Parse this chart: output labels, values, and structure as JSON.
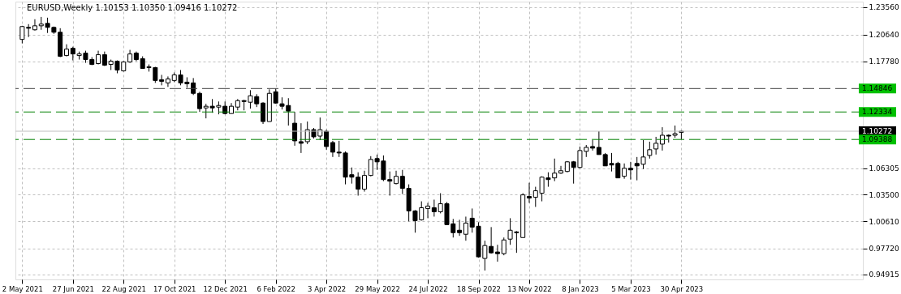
{
  "chart_data": {
    "type": "candlestick",
    "title": "EURUSD,Weekly  1.10153 1.10350 1.09416 1.10272",
    "x": [
      "2021-05-02",
      "2021-05-09",
      "2021-05-16",
      "2021-05-23",
      "2021-05-30",
      "2021-06-06",
      "2021-06-13",
      "2021-06-20",
      "2021-06-27",
      "2021-07-04",
      "2021-07-11",
      "2021-07-18",
      "2021-07-25",
      "2021-08-01",
      "2021-08-08",
      "2021-08-15",
      "2021-08-22",
      "2021-08-29",
      "2021-09-05",
      "2021-09-12",
      "2021-09-19",
      "2021-09-26",
      "2021-10-03",
      "2021-10-10",
      "2021-10-17",
      "2021-10-24",
      "2021-10-31",
      "2021-11-07",
      "2021-11-14",
      "2021-11-21",
      "2021-11-28",
      "2021-12-05",
      "2021-12-12",
      "2021-12-19",
      "2021-12-26",
      "2022-01-02",
      "2022-01-09",
      "2022-01-16",
      "2022-01-23",
      "2022-01-30",
      "2022-02-06",
      "2022-02-13",
      "2022-02-20",
      "2022-02-27",
      "2022-03-06",
      "2022-03-13",
      "2022-03-20",
      "2022-03-27",
      "2022-04-03",
      "2022-04-10",
      "2022-04-17",
      "2022-04-24",
      "2022-05-01",
      "2022-05-08",
      "2022-05-15",
      "2022-05-22",
      "2022-05-29",
      "2022-06-05",
      "2022-06-12",
      "2022-06-19",
      "2022-06-26",
      "2022-07-03",
      "2022-07-10",
      "2022-07-17",
      "2022-07-24",
      "2022-07-31",
      "2022-08-07",
      "2022-08-14",
      "2022-08-21",
      "2022-08-28",
      "2022-09-04",
      "2022-09-11",
      "2022-09-18",
      "2022-09-25",
      "2022-10-02",
      "2022-10-09",
      "2022-10-16",
      "2022-10-23",
      "2022-10-30",
      "2022-11-06",
      "2022-11-13",
      "2022-11-20",
      "2022-11-27",
      "2022-12-04",
      "2022-12-11",
      "2022-12-18",
      "2022-12-25",
      "2023-01-01",
      "2023-01-08",
      "2023-01-15",
      "2023-01-22",
      "2023-01-29",
      "2023-02-05",
      "2023-02-12",
      "2023-02-19",
      "2023-02-26",
      "2023-03-05",
      "2023-03-12",
      "2023-03-19",
      "2023-03-26",
      "2023-04-02",
      "2023-04-09",
      "2023-04-16",
      "2023-04-23",
      "2023-04-30"
    ],
    "ohlc": [
      [
        1.2011,
        1.2157,
        1.1968,
        1.2149
      ],
      [
        1.214,
        1.2175,
        1.2036,
        1.2131
      ],
      [
        1.2114,
        1.2227,
        1.2106,
        1.2157
      ],
      [
        1.2157,
        1.2252,
        1.2114,
        1.2175
      ],
      [
        1.2183,
        1.2244,
        1.208,
        1.214
      ],
      [
        1.214,
        1.2149,
        1.2071,
        1.2088
      ],
      [
        1.2088,
        1.2131,
        1.1821,
        1.183
      ],
      [
        1.1838,
        1.1959,
        1.183,
        1.1907
      ],
      [
        1.1916,
        1.1933,
        1.1786,
        1.1855
      ],
      [
        1.1838,
        1.1881,
        1.1795,
        1.1855
      ],
      [
        1.1864,
        1.189,
        1.176,
        1.1795
      ],
      [
        1.1795,
        1.1821,
        1.1735,
        1.1743
      ],
      [
        1.1752,
        1.189,
        1.1743,
        1.1847
      ],
      [
        1.1847,
        1.1881,
        1.1726,
        1.1735
      ],
      [
        1.1743,
        1.1795,
        1.1683,
        1.1778
      ],
      [
        1.1778,
        1.1786,
        1.1648,
        1.1683
      ],
      [
        1.1674,
        1.1778,
        1.1666,
        1.1769
      ],
      [
        1.1769,
        1.1899,
        1.176,
        1.1855
      ],
      [
        1.1864,
        1.1881,
        1.1778,
        1.1795
      ],
      [
        1.1804,
        1.183,
        1.17,
        1.17
      ],
      [
        1.1717,
        1.1743,
        1.1666,
        1.1709
      ],
      [
        1.1709,
        1.1717,
        1.1545,
        1.1571
      ],
      [
        1.1579,
        1.1631,
        1.1519,
        1.1562
      ],
      [
        1.1545,
        1.1614,
        1.1502,
        1.1588
      ],
      [
        1.1571,
        1.1657,
        1.1553,
        1.1631
      ],
      [
        1.1631,
        1.1683,
        1.1519,
        1.1545
      ],
      [
        1.1553,
        1.1605,
        1.1493,
        1.1536
      ],
      [
        1.1545,
        1.1597,
        1.1415,
        1.1433
      ],
      [
        1.1433,
        1.145,
        1.1234,
        1.1269
      ],
      [
        1.1277,
        1.1321,
        1.1165,
        1.1295
      ],
      [
        1.1295,
        1.1372,
        1.1225,
        1.1277
      ],
      [
        1.1286,
        1.1346,
        1.1208,
        1.1303
      ],
      [
        1.1295,
        1.1346,
        1.1208,
        1.1217
      ],
      [
        1.1217,
        1.1329,
        1.1217,
        1.1295
      ],
      [
        1.1286,
        1.1372,
        1.1251,
        1.1355
      ],
      [
        1.1355,
        1.1364,
        1.1251,
        1.1346
      ],
      [
        1.1338,
        1.1467,
        1.1269,
        1.1407
      ],
      [
        1.1398,
        1.1424,
        1.1286,
        1.1321
      ],
      [
        1.1329,
        1.1338,
        1.1105,
        1.1131
      ],
      [
        1.1131,
        1.1476,
        1.1131,
        1.1433
      ],
      [
        1.145,
        1.1484,
        1.1321,
        1.1329
      ],
      [
        1.1321,
        1.139,
        1.126,
        1.1295
      ],
      [
        1.1303,
        1.1381,
        1.1088,
        1.1243
      ],
      [
        1.1113,
        1.1234,
        1.0872,
        1.0924
      ],
      [
        1.0915,
        1.1113,
        1.0794,
        1.0898
      ],
      [
        1.0915,
        1.1131,
        1.0889,
        1.1044
      ],
      [
        1.1044,
        1.1062,
        1.0949,
        1.0967
      ],
      [
        1.0975,
        1.1174,
        1.0932,
        1.1044
      ],
      [
        1.1027,
        1.1044,
        1.0829,
        1.0863
      ],
      [
        1.0906,
        1.0924,
        1.0751,
        1.0803
      ],
      [
        1.0803,
        1.0924,
        1.0751,
        1.0794
      ],
      [
        1.0794,
        1.0811,
        1.0458,
        1.0535
      ],
      [
        1.0561,
        1.0639,
        1.0466,
        1.0535
      ],
      [
        1.0535,
        1.0587,
        1.0337,
        1.0406
      ],
      [
        1.0406,
        1.0604,
        1.038,
        1.0553
      ],
      [
        1.0553,
        1.076,
        1.0544,
        1.0725
      ],
      [
        1.0734,
        1.0777,
        1.0613,
        1.0699
      ],
      [
        1.0708,
        1.0768,
        1.0492,
        1.0509
      ],
      [
        1.0509,
        1.0596,
        1.0337,
        1.0492
      ],
      [
        1.0466,
        1.0604,
        1.0458,
        1.0544
      ],
      [
        1.0544,
        1.0613,
        1.0354,
        1.0415
      ],
      [
        1.0415,
        1.0458,
        1.0061,
        1.0173
      ],
      [
        1.0173,
        1.0182,
        0.994,
        1.0069
      ],
      [
        1.0078,
        1.0276,
        1.0069,
        1.0207
      ],
      [
        1.0199,
        1.0259,
        1.0095,
        1.0225
      ],
      [
        1.0207,
        1.0294,
        1.0112,
        1.0164
      ],
      [
        1.0164,
        1.0363,
        1.0147,
        1.025
      ],
      [
        1.025,
        1.0268,
        1.0026,
        1.0026
      ],
      [
        1.0035,
        1.0087,
        0.9888,
        0.994
      ],
      [
        0.9966,
        1.0078,
        0.9906,
        0.994
      ],
      [
        0.9923,
        1.0112,
        0.9854,
        1.0043
      ],
      [
        1.0095,
        1.0199,
        0.994,
        1.0
      ],
      [
        1.0009,
        1.0052,
        0.9672,
        0.9681
      ],
      [
        0.9664,
        0.9854,
        0.9534,
        0.9802
      ],
      [
        0.9793,
        1.0,
        0.9715,
        0.9724
      ],
      [
        0.9733,
        0.981,
        0.9629,
        0.9715
      ],
      [
        0.9715,
        0.9888,
        0.9698,
        0.9862
      ],
      [
        0.9871,
        1.0095,
        0.981,
        0.9966
      ],
      [
        0.9948,
        0.9957,
        0.9724,
        0.994
      ],
      [
        0.9888,
        1.0363,
        0.9888,
        1.0345
      ],
      [
        1.0328,
        1.0475,
        1.0259,
        1.0311
      ],
      [
        1.0319,
        1.0432,
        1.0216,
        1.0389
      ],
      [
        1.0363,
        1.0544,
        1.0276,
        1.0535
      ],
      [
        1.0527,
        1.0587,
        1.0432,
        1.0509
      ],
      [
        1.0527,
        1.0734,
        1.0492,
        1.0578
      ],
      [
        1.0578,
        1.0656,
        1.057,
        1.0604
      ],
      [
        1.0596,
        1.0708,
        1.0587,
        1.0699
      ],
      [
        1.0699,
        1.0708,
        1.0466,
        1.0639
      ],
      [
        1.0639,
        1.0863,
        1.063,
        1.082
      ],
      [
        1.0811,
        1.088,
        1.0751,
        1.0854
      ],
      [
        1.0863,
        1.0932,
        1.082,
        1.0846
      ],
      [
        1.0854,
        1.1027,
        1.0777,
        1.0777
      ],
      [
        1.0777,
        1.0794,
        1.0656,
        1.0656
      ],
      [
        1.0682,
        1.0794,
        1.0596,
        1.0665
      ],
      [
        1.0682,
        1.0699,
        1.0527,
        1.0527
      ],
      [
        1.0544,
        1.0682,
        1.0518,
        1.063
      ],
      [
        1.063,
        1.0699,
        1.0509,
        1.0613
      ],
      [
        1.0682,
        1.0751,
        1.0501,
        1.0656
      ],
      [
        1.0673,
        1.0932,
        1.0622,
        1.0751
      ],
      [
        1.0768,
        1.0915,
        1.0734,
        1.0829
      ],
      [
        1.0837,
        1.0967,
        1.0777,
        1.0898
      ],
      [
        1.0889,
        1.107,
        1.082,
        1.0984
      ],
      [
        1.0984,
        1.0993,
        1.0906,
        1.0975
      ],
      [
        1.0984,
        1.1088,
        1.0958,
        1.1001
      ],
      [
        1.10153,
        1.1035,
        1.09416,
        1.10272
      ]
    ],
    "xlim": [
      "2021-04-29",
      "2023-11-12"
    ],
    "xticks": [
      {
        "value": "2021-05-02",
        "label": "2 May 2021"
      },
      {
        "value": "2021-06-27",
        "label": "27 Jun 2021"
      },
      {
        "value": "2021-08-22",
        "label": "22 Aug 2021"
      },
      {
        "value": "2021-10-17",
        "label": "17 Oct 2021"
      },
      {
        "value": "2021-12-12",
        "label": "12 Dec 2021"
      },
      {
        "value": "2022-02-06",
        "label": "6 Feb 2022"
      },
      {
        "value": "2022-04-03",
        "label": "3 Apr 2022"
      },
      {
        "value": "2022-05-29",
        "label": "29 May 2022"
      },
      {
        "value": "2022-07-24",
        "label": "24 Jul 2022"
      },
      {
        "value": "2022-09-18",
        "label": "18 Sep 2022"
      },
      {
        "value": "2022-11-13",
        "label": "13 Nov 2022"
      },
      {
        "value": "2023-01-08",
        "label": "8 Jan 2023"
      },
      {
        "value": "2023-03-05",
        "label": "5 Mar 2023"
      },
      {
        "value": "2023-04-30",
        "label": "30 Apr 2023"
      }
    ],
    "ylim": [
      0.9439,
      1.2416
    ],
    "yticks": [
      {
        "value": 1.2356,
        "label": "1.23560"
      },
      {
        "value": 1.2064,
        "label": "1.20640"
      },
      {
        "value": 1.1778,
        "label": "1.17780"
      },
      {
        "value": 1.06305,
        "label": "1.06305"
      },
      {
        "value": 1.035,
        "label": "1.03500"
      },
      {
        "value": 1.0061,
        "label": "1.00610"
      },
      {
        "value": 0.9772,
        "label": "0.97720"
      },
      {
        "value": 0.94915,
        "label": "0.94915"
      }
    ],
    "ref_lines": [
      {
        "axis": "y",
        "value": 1.14846,
        "label": "1.14846",
        "color": "#404040",
        "line_style": "dashed"
      },
      {
        "axis": "y",
        "value": 1.12334,
        "label": "1.12334",
        "color": "#008000",
        "line_style": "dashed"
      },
      {
        "axis": "y",
        "value": 1.10272,
        "label": "1.10272",
        "color": "#c0c0c0",
        "line_style": "solid"
      },
      {
        "axis": "y",
        "value": 1.09388,
        "label": "1.09388",
        "color": "#008000",
        "line_style": "dashed"
      }
    ],
    "grid": true
  }
}
